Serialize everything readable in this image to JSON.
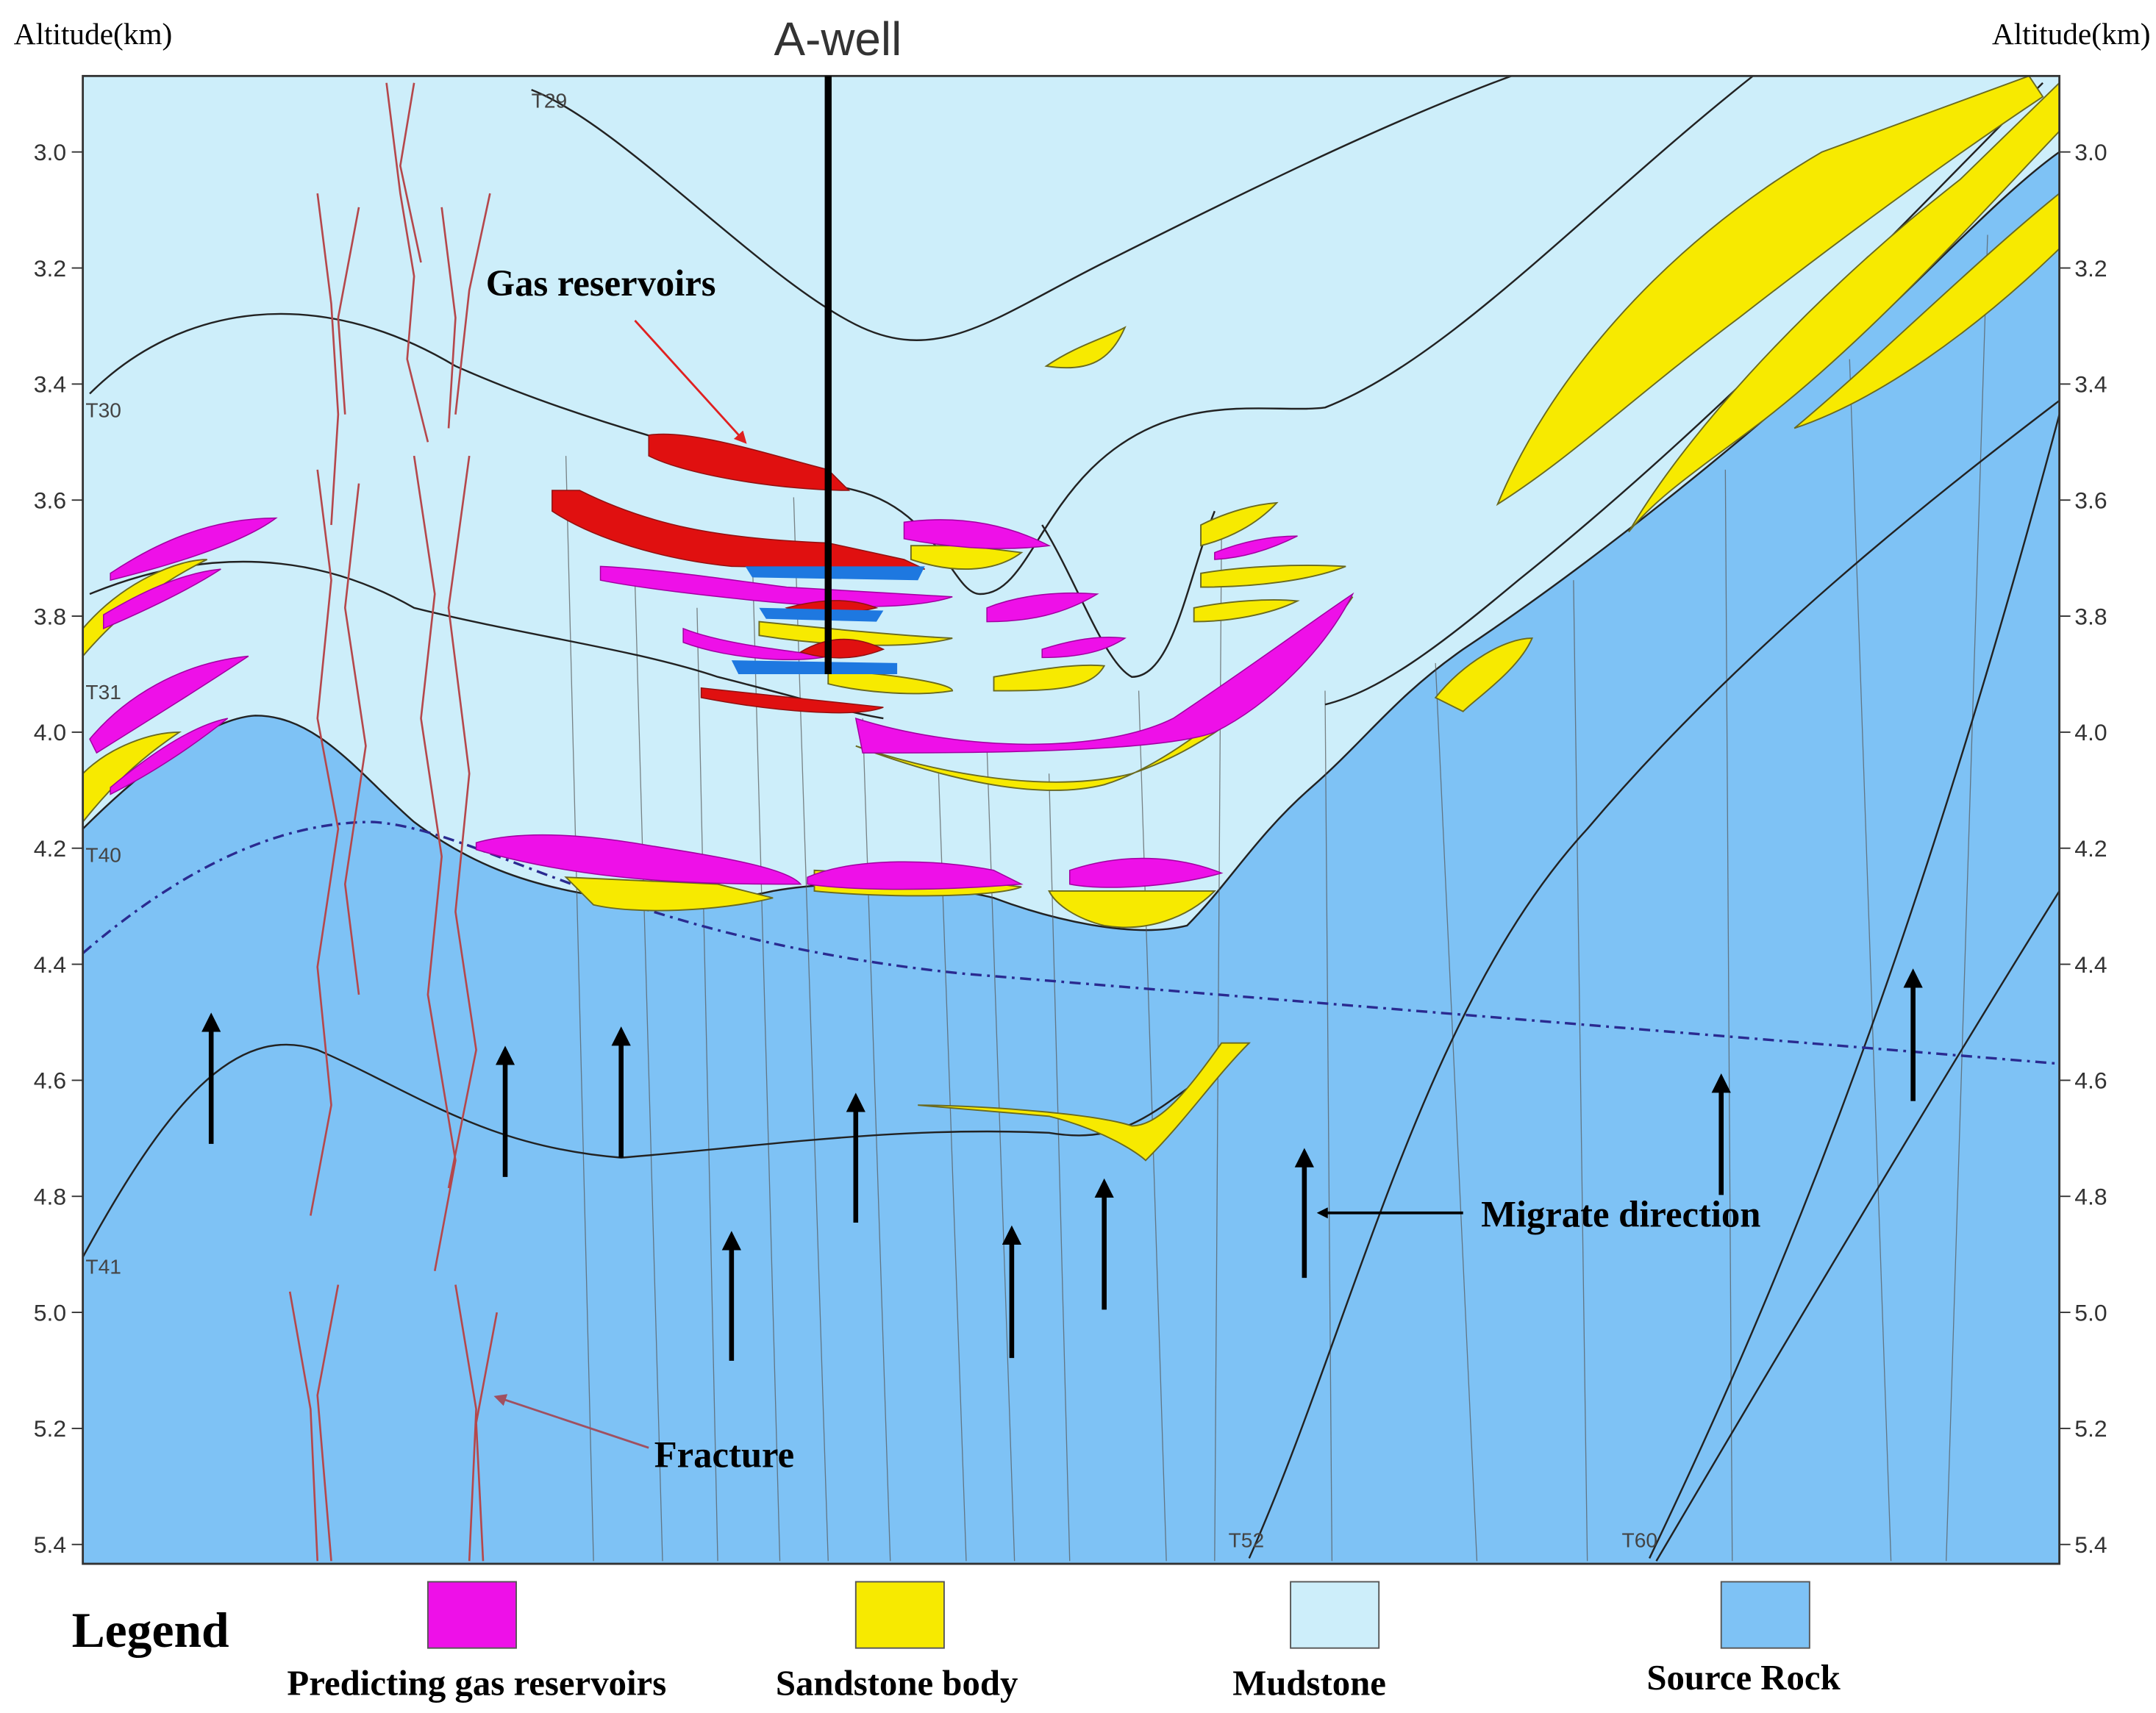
{
  "header": {
    "title": "A-well"
  },
  "axes": {
    "left": {
      "title": "Altitude(km)",
      "ticks": [
        "3.0",
        "3.2",
        "3.4",
        "3.6",
        "3.8",
        "4.0",
        "4.2",
        "4.4",
        "4.6",
        "4.8",
        "5.0",
        "5.2",
        "5.4"
      ]
    },
    "right": {
      "title": "Altitude(km)",
      "ticks": [
        "3.0",
        "3.2",
        "3.4",
        "3.6",
        "3.8",
        "4.0",
        "4.2",
        "4.4",
        "4.6",
        "4.8",
        "5.0",
        "5.2",
        "5.4"
      ]
    }
  },
  "horizons": [
    "T29",
    "T30",
    "T31",
    "T40",
    "T41",
    "T52",
    "T60"
  ],
  "annotations": {
    "gas_reservoirs": "Gas reservoirs",
    "migrate_direction": "Migrate direction",
    "fracture": "Fracture"
  },
  "legend": {
    "title": "Legend",
    "items": [
      {
        "label": "Predicting gas reservoirs",
        "color": "#ee10e8"
      },
      {
        "label": "Sandstone body",
        "color": "#f7ea00"
      },
      {
        "label": "Mudstone",
        "color": "#cdeefa"
      },
      {
        "label": "Source Rock",
        "color": "#7ec2f5"
      }
    ]
  }
}
